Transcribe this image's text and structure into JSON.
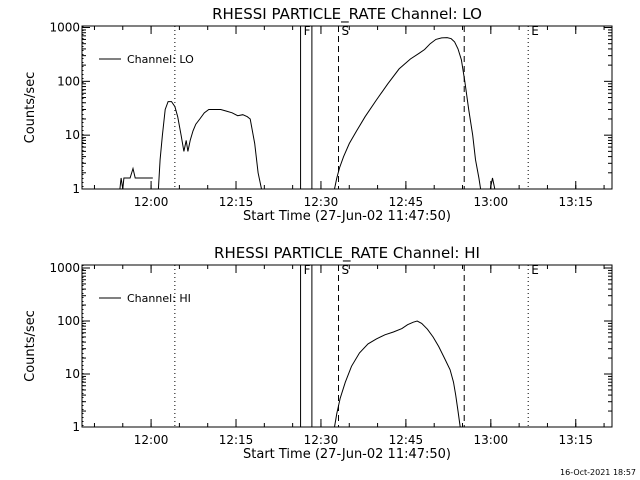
{
  "chart_data": [
    {
      "type": "line",
      "title": "RHESSI PARTICLE_RATE Channel: LO",
      "xlabel": "Start Time (27-Jun-02 11:47:50)",
      "ylabel": "Counts/sec",
      "y_scale": "log",
      "ylim": [
        1,
        1000
      ],
      "xlim_min": [
        -2.2,
        91.5
      ],
      "x_ticks": [
        {
          "v": 12.2,
          "label": "12:00"
        },
        {
          "v": 27.2,
          "label": "12:15"
        },
        {
          "v": 42.2,
          "label": "12:30"
        },
        {
          "v": 57.2,
          "label": "12:45"
        },
        {
          "v": 72.2,
          "label": "13:00"
        },
        {
          "v": 87.2,
          "label": "13:15"
        }
      ],
      "y_ticks": [
        {
          "v": 1,
          "label": "1"
        },
        {
          "v": 10,
          "label": "10"
        },
        {
          "v": 100,
          "label": "100"
        },
        {
          "v": 1000,
          "label": "1000"
        }
      ],
      "legend": {
        "label": "Channel: LO",
        "position": "top-left"
      },
      "markers": [
        {
          "x": 38.6,
          "style": "solid",
          "label": "F"
        },
        {
          "x": 40.6,
          "style": "solid",
          "label": ""
        },
        {
          "x": 45.3,
          "style": "dashed",
          "label": "S"
        },
        {
          "x": 67.5,
          "style": "dashed",
          "label": ""
        },
        {
          "x": 16.4,
          "style": "dotted",
          "label": ""
        },
        {
          "x": 78.8,
          "style": "dotted",
          "label": "E"
        },
        {
          "x": 93.6,
          "style": "dotted",
          "label": ""
        },
        {
          "x": -2.2,
          "style": "dotted",
          "label": ""
        }
      ],
      "series": [
        {
          "segments": [
            [
              [
                6.7,
                1
              ],
              [
                6.9,
                1.6
              ],
              [
                7.2,
                1
              ],
              [
                7.4,
                1.6
              ],
              [
                8.5,
                1.6
              ],
              [
                9.0,
                2.4
              ],
              [
                9.4,
                1.6
              ],
              [
                10.3,
                1.6
              ],
              [
                11.2,
                1.6
              ],
              [
                12.1,
                1.6
              ],
              [
                12.5,
                1.6
              ]
            ],
            [
              [
                13.5,
                1
              ],
              [
                13.8,
                3.5
              ],
              [
                14.2,
                10
              ],
              [
                14.7,
                30
              ],
              [
                15.2,
                42
              ],
              [
                15.8,
                42
              ],
              [
                16.4,
                34
              ],
              [
                16.9,
                22
              ],
              [
                17.5,
                10
              ],
              [
                18.0,
                5
              ],
              [
                18.4,
                8
              ],
              [
                18.7,
                5
              ],
              [
                19.1,
                8
              ],
              [
                19.6,
                12
              ],
              [
                20.1,
                16
              ],
              [
                20.8,
                20
              ],
              [
                21.6,
                26
              ],
              [
                22.4,
                30
              ],
              [
                23.4,
                30
              ],
              [
                24.5,
                30
              ],
              [
                25.5,
                28
              ],
              [
                26.5,
                26
              ],
              [
                27.5,
                23
              ],
              [
                28.4,
                24
              ],
              [
                29.2,
                22
              ],
              [
                29.7,
                20
              ],
              [
                30.5,
                7
              ],
              [
                31.1,
                2
              ],
              [
                31.7,
                1
              ]
            ],
            [
              [
                44.6,
                1
              ],
              [
                45.0,
                1.6
              ],
              [
                45.5,
                2.5
              ],
              [
                46.2,
                4
              ],
              [
                47.2,
                7
              ],
              [
                48.5,
                12
              ],
              [
                50.0,
                22
              ],
              [
                52.0,
                45
              ],
              [
                54.0,
                90
              ],
              [
                56.0,
                170
              ],
              [
                58.0,
                260
              ],
              [
                59.5,
                330
              ],
              [
                60.5,
                390
              ],
              [
                61.5,
                500
              ],
              [
                62.5,
                600
              ],
              [
                63.5,
                640
              ],
              [
                64.5,
                650
              ],
              [
                65.2,
                620
              ],
              [
                65.8,
                540
              ],
              [
                66.4,
                400
              ],
              [
                67.0,
                250
              ],
              [
                67.6,
                100
              ],
              [
                68.3,
                30
              ],
              [
                69.0,
                10
              ],
              [
                69.5,
                3.5
              ],
              [
                70.1,
                1.6
              ],
              [
                70.4,
                1
              ]
            ],
            [
              [
                72.1,
                1
              ],
              [
                72.5,
                1.6
              ],
              [
                72.9,
                1
              ]
            ]
          ]
        }
      ]
    },
    {
      "type": "line",
      "title": "RHESSI PARTICLE_RATE Channel: HI",
      "xlabel": "Start Time (27-Jun-02 11:47:50)",
      "ylabel": "Counts/sec",
      "y_scale": "log",
      "ylim": [
        1,
        1000
      ],
      "xlim_min": [
        -2.2,
        91.5
      ],
      "x_ticks": [
        {
          "v": 12.2,
          "label": "12:00"
        },
        {
          "v": 27.2,
          "label": "12:15"
        },
        {
          "v": 42.2,
          "label": "12:30"
        },
        {
          "v": 57.2,
          "label": "12:45"
        },
        {
          "v": 72.2,
          "label": "13:00"
        },
        {
          "v": 87.2,
          "label": "13:15"
        }
      ],
      "y_ticks": [
        {
          "v": 1,
          "label": "1"
        },
        {
          "v": 10,
          "label": "10"
        },
        {
          "v": 100,
          "label": "100"
        },
        {
          "v": 1000,
          "label": "1000"
        }
      ],
      "legend": {
        "label": "Channel: HI",
        "position": "top-left"
      },
      "markers": [
        {
          "x": 38.6,
          "style": "solid",
          "label": "F"
        },
        {
          "x": 40.6,
          "style": "solid",
          "label": ""
        },
        {
          "x": 45.3,
          "style": "dashed",
          "label": "S"
        },
        {
          "x": 67.5,
          "style": "dashed",
          "label": ""
        },
        {
          "x": 16.4,
          "style": "dotted",
          "label": ""
        },
        {
          "x": 78.8,
          "style": "dotted",
          "label": "E"
        },
        {
          "x": 93.6,
          "style": "dotted",
          "label": ""
        },
        {
          "x": -2.2,
          "style": "dotted",
          "label": ""
        }
      ],
      "series": [
        {
          "segments": [
            [
              [
                44.6,
                1
              ],
              [
                45.0,
                1.8
              ],
              [
                45.6,
                3.5
              ],
              [
                46.5,
                7
              ],
              [
                47.6,
                14
              ],
              [
                49.0,
                25
              ],
              [
                50.5,
                37
              ],
              [
                52.0,
                46
              ],
              [
                53.5,
                55
              ],
              [
                55.0,
                62
              ],
              [
                56.5,
                72
              ],
              [
                57.5,
                85
              ],
              [
                58.5,
                95
              ],
              [
                59.2,
                100
              ],
              [
                60.0,
                90
              ],
              [
                61.0,
                70
              ],
              [
                62.0,
                50
              ],
              [
                63.0,
                33
              ],
              [
                64.0,
                20
              ],
              [
                65.0,
                12
              ],
              [
                65.6,
                7
              ],
              [
                66.0,
                4
              ],
              [
                66.4,
                2
              ],
              [
                66.8,
                1
              ]
            ]
          ]
        }
      ]
    }
  ],
  "footer": {
    "date": "16-Oct-2021 18:57"
  }
}
